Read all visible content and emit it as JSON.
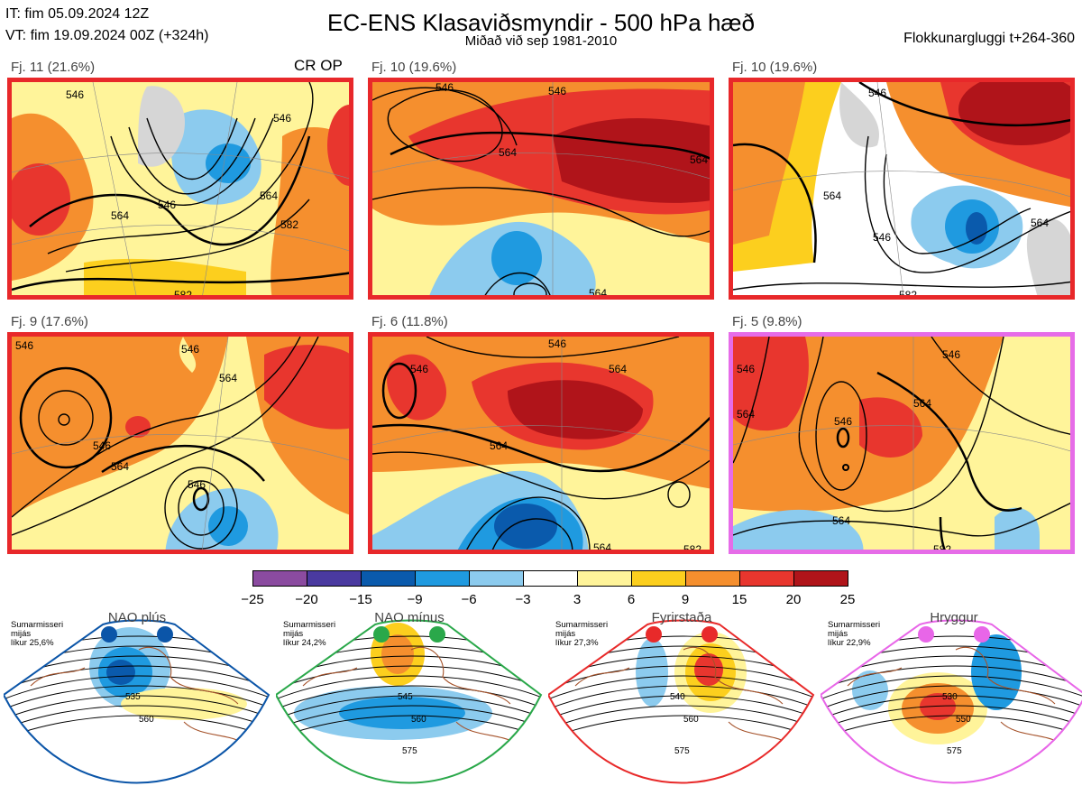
{
  "header": {
    "issue_time": "IT: fim 05.09.2024 12Z",
    "valid_time": "VT: fim 19.09.2024 00Z  (+324h)",
    "title": "EC-ENS Klasaviðsmyndir - 500 hPa hæð",
    "subtitle": "Miðað við sep 1981-2010",
    "window": "Flokkunargluggi t+264-360"
  },
  "panels": [
    {
      "label": "Fj. 11 (21.6%)",
      "frame_color": "#e8282a",
      "extra_label": "CR OP",
      "contours": [
        "546",
        "546",
        "564",
        "582",
        "546",
        "564",
        "582"
      ]
    },
    {
      "label": "Fj. 10 (19.6%)",
      "frame_color": "#e8282a",
      "contours": [
        "546",
        "564",
        "546",
        "564",
        "564"
      ]
    },
    {
      "label": "Fj. 10 (19.6%)",
      "frame_color": "#e8282a",
      "contours": [
        "546",
        "564",
        "546",
        "564",
        "582"
      ]
    },
    {
      "label": "Fj. 9 (17.6%)",
      "frame_color": "#e8282a",
      "contours": [
        "546",
        "546",
        "546",
        "564",
        "564",
        "546"
      ]
    },
    {
      "label": "Fj. 6 (11.8%)",
      "frame_color": "#e8282a",
      "contours": [
        "546",
        "546",
        "564",
        "564",
        "564",
        "582"
      ]
    },
    {
      "label": "Fj. 5 (9.8%)",
      "frame_color": "#e66ce8",
      "contours": [
        "546",
        "546",
        "564",
        "564",
        "564",
        "546",
        "582"
      ]
    }
  ],
  "colorbar": {
    "ticks": [
      "−25",
      "−20",
      "−15",
      "−9",
      "−6",
      "−3",
      "3",
      "6",
      "9",
      "15",
      "20",
      "25"
    ],
    "colors": [
      "#8b4ba0",
      "#4a3aa0",
      "#0a5aac",
      "#1f9ae0",
      "#8ccbee",
      "#ffffff",
      "#fff49a",
      "#fccf1e",
      "#f58f2e",
      "#e8362e",
      "#b0141a"
    ]
  },
  "regimes": [
    {
      "name": "NAO plús",
      "note": "Sumarmisseri\nmijás\nlíkur 25,6%",
      "color": "#0b55a8",
      "contours": [
        "535",
        "560"
      ]
    },
    {
      "name": "NAO mínus",
      "note": "Sumarmisseri\nmijás\nlíkur 24,2%",
      "color": "#2aa84a",
      "contours": [
        "545",
        "560",
        "575"
      ]
    },
    {
      "name": "Fyrirstaða",
      "note": "Sumarmisseri\nmijás\nlíkur 27,3%",
      "color": "#e82a2a",
      "contours": [
        "540",
        "560",
        "575"
      ]
    },
    {
      "name": "Hryggur",
      "note": "Sumarmisseri\nmijás\nlíkur 22,9%",
      "color": "#e866e8",
      "contours": [
        "530",
        "550",
        "575"
      ]
    }
  ]
}
